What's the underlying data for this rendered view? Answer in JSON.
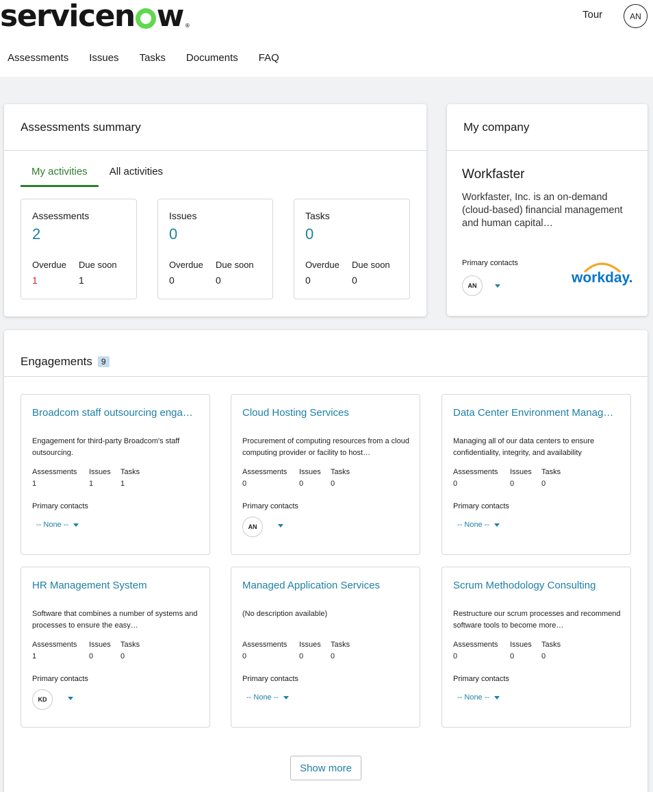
{
  "brand": {
    "logo_text_pre": "servicen",
    "logo_text_post": "w",
    "logo_mark": "®"
  },
  "header": {
    "tour_label": "Tour",
    "user_initials": "AN"
  },
  "nav": {
    "items": [
      "Assessments",
      "Issues",
      "Tasks",
      "Documents",
      "FAQ"
    ]
  },
  "summary": {
    "title": "Assessments summary",
    "tabs": [
      "My activities",
      "All activities"
    ],
    "overdue_label": "Overdue",
    "due_soon_label": "Due soon",
    "stats": [
      {
        "label": "Assessments",
        "total": "2",
        "overdue": "1",
        "due_soon": "1"
      },
      {
        "label": "Issues",
        "total": "0",
        "overdue": "0",
        "due_soon": "0"
      },
      {
        "label": "Tasks",
        "total": "0",
        "overdue": "0",
        "due_soon": "0"
      }
    ]
  },
  "company": {
    "header": "My company",
    "name": "Workfaster",
    "description": "Workfaster, Inc. is an on-demand (cloud-based) financial management and human capital…",
    "primary_contacts_label": "Primary contacts",
    "contact_initials": "AN",
    "logo_text": "workday."
  },
  "engagements": {
    "title": "Engagements",
    "count": "9",
    "col_assessments": "Assessments",
    "col_issues": "Issues",
    "col_tasks": "Tasks",
    "primary_contacts_label": "Primary contacts",
    "none_label": "-- None --",
    "show_more_label": "Show more",
    "items": [
      {
        "title": "Broadcom staff outsourcing enga…",
        "description": "Engagement for third-party Broadcom's staff outsourcing.",
        "assessments": "1",
        "issues": "1",
        "tasks": "1",
        "contact": ""
      },
      {
        "title": "Cloud Hosting Services",
        "description": "Procurement of computing resources from a cloud computing provider or facility to host…",
        "assessments": "0",
        "issues": "0",
        "tasks": "0",
        "contact": "AN"
      },
      {
        "title": "Data Center Environment Manag…",
        "description": "Managing all of our data centers to ensure confidentiality, integrity, and availability",
        "assessments": "0",
        "issues": "0",
        "tasks": "0",
        "contact": ""
      },
      {
        "title": "HR Management System",
        "description": "Software that combines a number of systems and processes to ensure the easy…",
        "assessments": "1",
        "issues": "0",
        "tasks": "0",
        "contact": "KD"
      },
      {
        "title": "Managed Application Services",
        "description": "(No description available)",
        "assessments": "0",
        "issues": "0",
        "tasks": "0",
        "contact": ""
      },
      {
        "title": "Scrum Methodology Consulting",
        "description": "Restructure our scrum processes and recommend software tools to become more…",
        "assessments": "0",
        "issues": "0",
        "tasks": "0",
        "contact": ""
      }
    ]
  },
  "colors": {
    "accent": "#1f7fa5",
    "tab_active": "#2e7d2e",
    "overdue": "#c8272d",
    "logo_green": "#62d84e",
    "workday_blue": "#0875c8",
    "workday_orange": "#f5a623"
  }
}
